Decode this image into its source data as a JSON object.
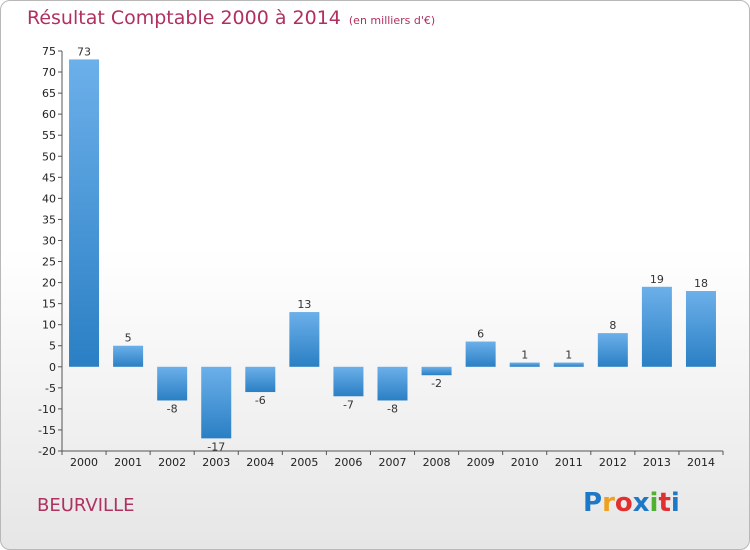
{
  "title": "Résultat Comptable 2000 à 2014",
  "subtitle": "(en milliers d'€)",
  "town": "BEURVILLE",
  "logo": {
    "text": "Proxiti",
    "letters": [
      "P",
      "r",
      "o",
      "x",
      "i",
      "t",
      "i"
    ],
    "colors": [
      "#1e78c8",
      "#f0a020",
      "#e03030",
      "#1e78c8",
      "#50b030",
      "#e03030",
      "#1e78c8"
    ]
  },
  "colors": {
    "bar_top": "#6cb0ea",
    "bar_bottom": "#2a7fc4",
    "title": "#b03060"
  },
  "chart_data": {
    "type": "bar",
    "title": "Résultat Comptable 2000 à 2014",
    "subtitle": "(en milliers d'€)",
    "categories": [
      "2000",
      "2001",
      "2002",
      "2003",
      "2004",
      "2005",
      "2006",
      "2007",
      "2008",
      "2009",
      "2010",
      "2011",
      "2012",
      "2013",
      "2014"
    ],
    "values": [
      73,
      5,
      -8,
      -17,
      -6,
      13,
      -7,
      -8,
      -2,
      6,
      1,
      1,
      8,
      19,
      18
    ],
    "ylim": [
      -20,
      75
    ],
    "yticks": [
      -20,
      -15,
      -10,
      -5,
      0,
      5,
      10,
      15,
      20,
      25,
      30,
      35,
      40,
      45,
      50,
      55,
      60,
      65,
      70,
      75
    ],
    "grid": false,
    "xlabel": "",
    "ylabel": ""
  }
}
